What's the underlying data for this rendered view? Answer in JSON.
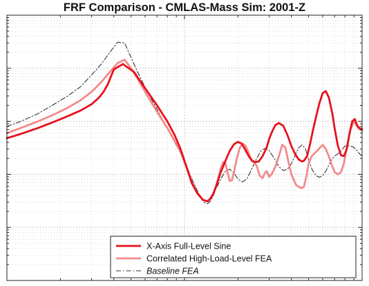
{
  "chart_data": {
    "type": "line",
    "title": "FRF Comparison - CMLAS-Mass Sim: 2001-Z",
    "xlabel": "",
    "ylabel": "",
    "x_scale": "log",
    "y_scale": "log",
    "grid": true,
    "tick_labels_visible": false,
    "legend_position": "bottom-right",
    "xlim": [
      10,
      1000
    ],
    "ylim": [
      0.0001,
      10
    ],
    "x_major_ticks": [
      10,
      100,
      1000
    ],
    "y_major_ticks": [
      0.0001,
      0.001,
      0.01,
      0.1,
      1,
      10
    ],
    "series": [
      {
        "name": "X-Axis Full-Level  Sine",
        "color": "#e8101e",
        "line_style": "solid",
        "line_width": "thick",
        "x": [
          10,
          12,
          15,
          18,
          22,
          26,
          30,
          33,
          35,
          37,
          40,
          45,
          52,
          60,
          70,
          80,
          88,
          95,
          100,
          105,
          110,
          118,
          127,
          135,
          140,
          146,
          152,
          160,
          170,
          180,
          190,
          200,
          210,
          220,
          230,
          240,
          250,
          262,
          275,
          290,
          300,
          312,
          325,
          340,
          360,
          380,
          400,
          420,
          440,
          460,
          470,
          490,
          510,
          530,
          550,
          575,
          600,
          625,
          650,
          680,
          700,
          730,
          760,
          790,
          820,
          850,
          880,
          910,
          940,
          970,
          1000
        ],
        "y": [
          0.048,
          0.058,
          0.075,
          0.095,
          0.125,
          0.16,
          0.21,
          0.28,
          0.36,
          0.5,
          0.95,
          1.2,
          0.85,
          0.42,
          0.2,
          0.1,
          0.055,
          0.03,
          0.018,
          0.011,
          0.0068,
          0.0044,
          0.0033,
          0.0031,
          0.0035,
          0.0045,
          0.0065,
          0.011,
          0.018,
          0.028,
          0.037,
          0.041,
          0.038,
          0.029,
          0.022,
          0.018,
          0.017,
          0.0175,
          0.022,
          0.032,
          0.047,
          0.065,
          0.085,
          0.093,
          0.082,
          0.055,
          0.034,
          0.024,
          0.019,
          0.0175,
          0.018,
          0.022,
          0.038,
          0.07,
          0.12,
          0.22,
          0.34,
          0.37,
          0.28,
          0.14,
          0.075,
          0.035,
          0.023,
          0.022,
          0.03,
          0.06,
          0.1,
          0.11,
          0.082,
          0.074,
          0.071
        ]
      },
      {
        "name": "Correlated High-Load-Level FEA",
        "color": "#f28a8a",
        "line_style": "solid",
        "line_width": "thick",
        "x": [
          10,
          12,
          15,
          18,
          22,
          26,
          30,
          34,
          38,
          42,
          46,
          50,
          55,
          60,
          66,
          72,
          80,
          88,
          95,
          100,
          105,
          110,
          118,
          127,
          133,
          138,
          142,
          146,
          150,
          155,
          160,
          165,
          170,
          175,
          180,
          185,
          190,
          197,
          205,
          212,
          220,
          228,
          236,
          245,
          255,
          265,
          275,
          283,
          290,
          300,
          312,
          325,
          340,
          355,
          370,
          385,
          400,
          415,
          425,
          440,
          455,
          470,
          485,
          500,
          520,
          540,
          560,
          580,
          600,
          625,
          650,
          675,
          700,
          730,
          760,
          790,
          820,
          860,
          900,
          930,
          960,
          1000
        ],
        "y": [
          0.06,
          0.075,
          0.1,
          0.13,
          0.18,
          0.25,
          0.36,
          0.55,
          0.85,
          1.25,
          1.45,
          1.0,
          0.6,
          0.36,
          0.21,
          0.13,
          0.075,
          0.043,
          0.027,
          0.017,
          0.011,
          0.0072,
          0.0045,
          0.0033,
          0.0031,
          0.0033,
          0.0038,
          0.0045,
          0.0058,
          0.0085,
          0.013,
          0.017,
          0.016,
          0.0105,
          0.0075,
          0.0078,
          0.011,
          0.02,
          0.032,
          0.038,
          0.035,
          0.027,
          0.02,
          0.017,
          0.0145,
          0.0095,
          0.0085,
          0.0105,
          0.0115,
          0.009,
          0.0105,
          0.014,
          0.022,
          0.036,
          0.032,
          0.017,
          0.01,
          0.0075,
          0.0063,
          0.0058,
          0.0055,
          0.0058,
          0.009,
          0.016,
          0.022,
          0.025,
          0.028,
          0.032,
          0.036,
          0.03,
          0.022,
          0.015,
          0.011,
          0.01,
          0.011,
          0.016,
          0.032,
          0.07,
          0.1,
          0.085,
          0.072,
          0.066
        ]
      },
      {
        "name": "Baseline FEA",
        "color": "#333333",
        "line_style": "dashdot",
        "line_width": "thin",
        "x": [
          10,
          12,
          15,
          18,
          22,
          26,
          30,
          34,
          38,
          42,
          46,
          50,
          54,
          58,
          62,
          66,
          70,
          75,
          80,
          85,
          90,
          95,
          100,
          105,
          110,
          118,
          125,
          130,
          135,
          140,
          145,
          150,
          160,
          170,
          180,
          190,
          200,
          212,
          225,
          240,
          255,
          270,
          285,
          300,
          320,
          340,
          360,
          380,
          400,
          420,
          440,
          460,
          480,
          500,
          525,
          550,
          575,
          600,
          625,
          650,
          675,
          700,
          725,
          750,
          775,
          800,
          830,
          860,
          890,
          920,
          950,
          1000
        ],
        "y": [
          0.08,
          0.1,
          0.14,
          0.2,
          0.3,
          0.45,
          0.75,
          1.2,
          2.0,
          3.1,
          3.0,
          1.6,
          0.9,
          0.55,
          0.35,
          0.24,
          0.17,
          0.11,
          0.074,
          0.05,
          0.035,
          0.025,
          0.018,
          0.012,
          0.0082,
          0.005,
          0.0035,
          0.0029,
          0.0028,
          0.0031,
          0.0039,
          0.0052,
          0.0082,
          0.0115,
          0.0125,
          0.0105,
          0.0082,
          0.0072,
          0.0082,
          0.013,
          0.02,
          0.028,
          0.031,
          0.028,
          0.02,
          0.014,
          0.0118,
          0.0125,
          0.016,
          0.023,
          0.032,
          0.036,
          0.03,
          0.019,
          0.012,
          0.0095,
          0.0088,
          0.0095,
          0.0115,
          0.015,
          0.019,
          0.022,
          0.024,
          0.026,
          0.03,
          0.034,
          0.035,
          0.034,
          0.033,
          0.03,
          0.026,
          0.022
        ]
      }
    ]
  }
}
